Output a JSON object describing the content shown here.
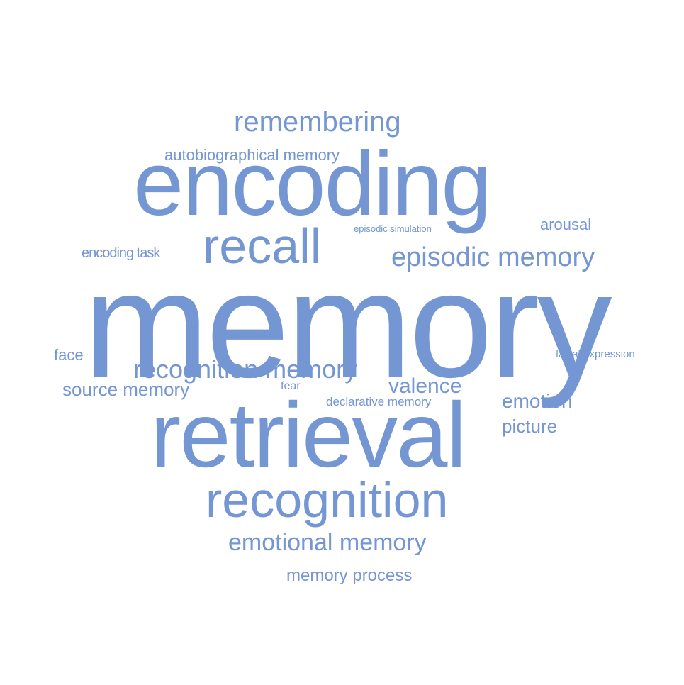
{
  "color": "#7496d2",
  "words": {
    "memory": "memory",
    "encoding": "encoding",
    "retrieval": "retrieval",
    "recognition": "recognition",
    "recall": "recall",
    "episodic_memory": "episodic memory",
    "remembering": "remembering",
    "recognition_memory": "recognition memory",
    "emotional_memory": "emotional memory",
    "source_memory": "source memory",
    "valence": "valence",
    "emotion": "emotion",
    "picture": "picture",
    "autobiographical_memory": "autobiographical memory",
    "encoding_task": "encoding task",
    "arousal": "arousal",
    "face": "face",
    "declarative_memory": "declarative memory",
    "fear": "fear",
    "episodic_simulation": "episodic simulation",
    "facial_expression": "facial expression",
    "memory_process": "memory process"
  }
}
